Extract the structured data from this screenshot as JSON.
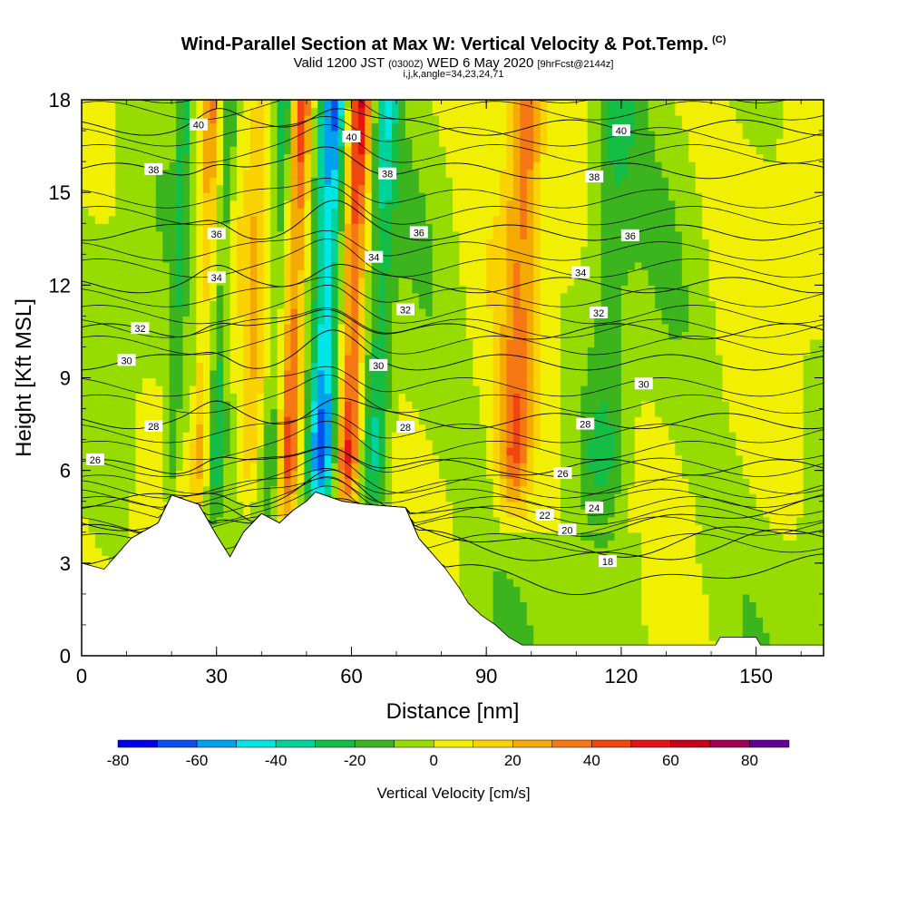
{
  "header": {
    "title": "Wind-Parallel Section at Max W: Vertical Velocity & Pot.Temp.",
    "copyright": "(C)",
    "valid_prefix": "Valid 1200 JST",
    "valid_utc": "(0300Z)",
    "valid_date": "WED 6 May 2020",
    "forecast": "[9hrFcst@2144z]",
    "indices": "i,j,k,angle=34,23,24,71"
  },
  "chart_data": {
    "type": "heatmap",
    "title": "Wind-Parallel Section at Max W: Vertical Velocity & Pot.Temp.",
    "xlabel": "Distance [nm]",
    "ylabel": "Height [Kft MSL]",
    "xlim": [
      0,
      165
    ],
    "ylim": [
      0,
      18
    ],
    "x_ticks": [
      0,
      30,
      60,
      90,
      120,
      150
    ],
    "y_ticks": [
      0,
      3,
      6,
      9,
      12,
      15,
      18
    ],
    "colorbar": {
      "title": "Vertical Velocity [cm/s]",
      "labels": [
        -80,
        -60,
        -40,
        -20,
        0,
        20,
        40,
        60,
        80
      ],
      "bounds": [
        -80,
        -70,
        -60,
        -50,
        -40,
        -30,
        -20,
        -10,
        0,
        10,
        20,
        30,
        40,
        50,
        60,
        70,
        80,
        90
      ],
      "colors": [
        "#0000e6",
        "#0a50f0",
        "#00a0f0",
        "#00e6e6",
        "#00d29b",
        "#14be46",
        "#3cb41e",
        "#96dc00",
        "#f0f000",
        "#fad200",
        "#f5aa00",
        "#f57814",
        "#f0460f",
        "#e61414",
        "#c8001e",
        "#a0005a",
        "#640096"
      ]
    },
    "updraft_cells": [
      {
        "x": 21,
        "w": 1.0,
        "amp": -25
      },
      {
        "x": 27,
        "w": 1.2,
        "amp": 30
      },
      {
        "x": 31,
        "w": 1.2,
        "amp": -30
      },
      {
        "x": 38,
        "w": 1.5,
        "amp": 20
      },
      {
        "x": 43,
        "w": 1.5,
        "amp": -28
      },
      {
        "x": 47,
        "w": 1.5,
        "amp": 52
      },
      {
        "x": 54,
        "w": 2.2,
        "amp": -78
      },
      {
        "x": 60,
        "w": 1.8,
        "amp": 68
      },
      {
        "x": 66,
        "w": 2.0,
        "amp": -40
      },
      {
        "x": 97,
        "w": 2.5,
        "amp": 45
      },
      {
        "x": 117,
        "w": 3.5,
        "amp": -26
      }
    ],
    "terrain_kft": [
      [
        0,
        3.0
      ],
      [
        5,
        2.8
      ],
      [
        8,
        3.3
      ],
      [
        11,
        3.8
      ],
      [
        17,
        4.3
      ],
      [
        20,
        5.2
      ],
      [
        26,
        4.9
      ],
      [
        30,
        3.9
      ],
      [
        33,
        3.2
      ],
      [
        36,
        4.0
      ],
      [
        40,
        4.6
      ],
      [
        44,
        4.3
      ],
      [
        47,
        4.7
      ],
      [
        50,
        5.0
      ],
      [
        52,
        5.3
      ],
      [
        58,
        5.0
      ],
      [
        63,
        4.9
      ],
      [
        72,
        4.8
      ],
      [
        75,
        3.8
      ],
      [
        78,
        3.3
      ],
      [
        81,
        2.8
      ],
      [
        84,
        2.2
      ],
      [
        86,
        1.7
      ],
      [
        89,
        1.3
      ],
      [
        92,
        1.0
      ],
      [
        95,
        0.6
      ],
      [
        98,
        0.35
      ],
      [
        141,
        0.35
      ],
      [
        142,
        0.6
      ],
      [
        150,
        0.6
      ],
      [
        151,
        0.35
      ],
      [
        165,
        0.35
      ]
    ],
    "theta_contours": [
      {
        "value": 18,
        "label": "18",
        "label_x": 117,
        "base_kft": 3.1
      },
      {
        "value": 20,
        "label": "20",
        "label_x": 108,
        "base_kft": 4.0
      },
      {
        "value": 22,
        "label": "22",
        "label_x": 103,
        "base_kft": 4.3
      },
      {
        "value": 24,
        "label": "24",
        "label_x": 114,
        "base_kft": 5.0
      },
      {
        "value": 26,
        "label": "26",
        "label_x": 3,
        "base_kft": 6.1
      },
      {
        "value": 28,
        "label": "28",
        "label_x": 16,
        "base_kft": 7.6
      },
      {
        "value": 30,
        "label": "30",
        "label_x": 10,
        "base_kft": 9.5
      },
      {
        "value": 32,
        "label": "32",
        "label_x": 13,
        "base_kft": 10.5
      },
      {
        "value": 34,
        "label": "34",
        "label_x": 30,
        "base_kft": 12.0
      },
      {
        "value": 36,
        "label": "36",
        "label_x": 30,
        "base_kft": 13.7
      },
      {
        "value": 38,
        "label": "38",
        "label_x": 16,
        "base_kft": 15.7
      },
      {
        "value": 40,
        "label": "40",
        "label_x": 26,
        "base_kft": 17.1
      }
    ],
    "extra_contour_labels": [
      {
        "label": "40",
        "x": 60,
        "y": 16.8
      },
      {
        "label": "40",
        "x": 120,
        "y": 17.0
      },
      {
        "label": "38",
        "x": 68,
        "y": 15.6
      },
      {
        "label": "38",
        "x": 114,
        "y": 15.5
      },
      {
        "label": "36",
        "x": 75,
        "y": 13.7
      },
      {
        "label": "36",
        "x": 122,
        "y": 13.6
      },
      {
        "label": "34",
        "x": 65,
        "y": 12.9
      },
      {
        "label": "34",
        "x": 111,
        "y": 12.4
      },
      {
        "label": "32",
        "x": 72,
        "y": 11.2
      },
      {
        "label": "32",
        "x": 115,
        "y": 11.1
      },
      {
        "label": "30",
        "x": 66,
        "y": 9.4
      },
      {
        "label": "30",
        "x": 125,
        "y": 8.8
      },
      {
        "label": "28",
        "x": 72,
        "y": 7.4
      },
      {
        "label": "28",
        "x": 112,
        "y": 7.5
      },
      {
        "label": "26",
        "x": 107,
        "y": 5.9
      }
    ]
  }
}
